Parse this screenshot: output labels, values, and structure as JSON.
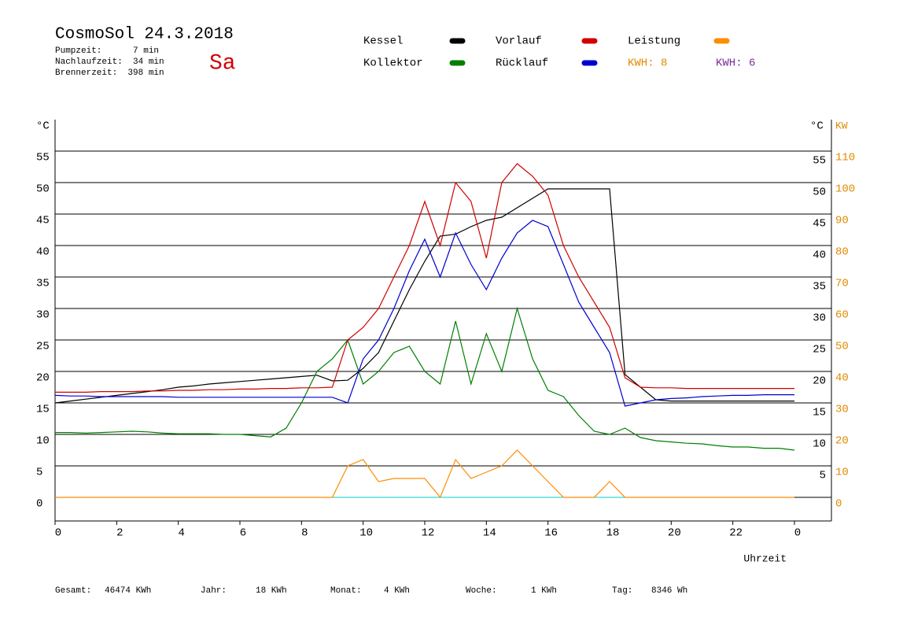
{
  "header": {
    "title": "CosmoSol 24.3.2018",
    "day": "Sa",
    "stats": [
      "Pumpzeit:      7 min",
      "Nachlaufzeit:  34 min",
      "Brennerzeit:  398 min"
    ]
  },
  "chart_data": {
    "type": "line",
    "y_unit": "°C",
    "y2_unit_c": "°C",
    "y2_unit": "KW",
    "x_label": "Uhrzeit",
    "kwh_labels": [
      {
        "text": "KWH: 8",
        "color": "#e08a00"
      },
      {
        "text": "KWH: 6",
        "color": "#7a2a9a"
      }
    ],
    "x": [
      0,
      0.5,
      1,
      1.5,
      2,
      2.5,
      3,
      3.5,
      4,
      4.5,
      5,
      5.5,
      6,
      6.5,
      7,
      7.5,
      8,
      8.5,
      9,
      9.5,
      10,
      10.5,
      11,
      11.5,
      12,
      12.5,
      13,
      13.5,
      14,
      14.5,
      15,
      15.5,
      16,
      16.5,
      17,
      17.5,
      18,
      18.5,
      19,
      19.5,
      20,
      20.5,
      21,
      21.5,
      22,
      22.5,
      23,
      23.5,
      24
    ],
    "xlim": [
      0,
      24
    ],
    "xticks": [
      0,
      2,
      4,
      6,
      8,
      10,
      12,
      14,
      16,
      18,
      20,
      22,
      {
        "value": 24,
        "label": "0"
      }
    ],
    "ylim": [
      -3.75,
      60
    ],
    "yticks": [
      0,
      5,
      10,
      15,
      20,
      25,
      30,
      35,
      40,
      45,
      50,
      55
    ],
    "y_right_ticks": [
      5,
      10,
      15,
      20,
      25,
      30,
      35,
      40,
      45,
      50,
      55
    ],
    "y2lim": [
      -7.5,
      120
    ],
    "y2ticks": [
      0,
      10,
      20,
      30,
      40,
      50,
      60,
      70,
      80,
      90,
      100,
      110
    ],
    "grid": true,
    "series": [
      {
        "name": "Kessel",
        "color": "#000000",
        "values": [
          15,
          15.3,
          15.6,
          15.9,
          16.2,
          16.5,
          16.8,
          17.1,
          17.5,
          17.7,
          18,
          18.2,
          18.4,
          18.6,
          18.8,
          19,
          19.2,
          19.4,
          18.5,
          18.6,
          20.5,
          23,
          28,
          33,
          37.5,
          41.5,
          41.8,
          43,
          44,
          44.5,
          46,
          47.5,
          49,
          49,
          49,
          49,
          49,
          19.5,
          17.5,
          15.5,
          15.3,
          15.3,
          15.3,
          15.3,
          15.3,
          15.3,
          15.3,
          15.3,
          15.3
        ]
      },
      {
        "name": "Kollektor",
        "color": "#007f00",
        "values": [
          10.3,
          10.3,
          10.2,
          10.3,
          10.4,
          10.5,
          10.4,
          10.2,
          10.1,
          10.1,
          10.1,
          10,
          10,
          9.8,
          9.6,
          11,
          15,
          20,
          22,
          25,
          18,
          20,
          23,
          24,
          20,
          18,
          28,
          18,
          26,
          20,
          30,
          22,
          17,
          16,
          13,
          10.5,
          10,
          11,
          9.5,
          9,
          8.8,
          8.6,
          8.5,
          8.2,
          8,
          8,
          7.8,
          7.8,
          7.5
        ]
      },
      {
        "name": "Vorlauf",
        "color": "#d00000",
        "values": [
          16.7,
          16.7,
          16.7,
          16.8,
          16.8,
          16.8,
          16.9,
          16.9,
          17,
          17,
          17.1,
          17.1,
          17.2,
          17.2,
          17.3,
          17.3,
          17.4,
          17.4,
          17.5,
          25,
          27,
          30,
          35,
          40,
          47,
          40,
          50,
          47,
          38,
          50,
          53,
          51,
          48,
          40,
          35,
          31,
          27,
          19,
          17.5,
          17.4,
          17.4,
          17.3,
          17.3,
          17.3,
          17.3,
          17.3,
          17.3,
          17.3,
          17.3
        ]
      },
      {
        "name": "Rücklauf",
        "color": "#0000d0",
        "values": [
          16.2,
          16.1,
          16.1,
          16,
          16,
          16,
          16,
          16,
          15.9,
          15.9,
          15.9,
          15.9,
          15.9,
          15.9,
          15.9,
          15.9,
          15.9,
          15.9,
          15.9,
          15,
          22,
          25,
          30,
          36,
          41,
          35,
          42,
          37,
          33,
          38,
          42,
          44,
          43,
          37,
          31,
          27,
          23,
          14.5,
          15,
          15.5,
          15.7,
          15.8,
          16,
          16.1,
          16.2,
          16.2,
          16.3,
          16.3,
          16.3
        ]
      },
      {
        "name": "Leistung",
        "color": "#ff8c00",
        "axis": "y2",
        "values": [
          0,
          0,
          0,
          0,
          0,
          0,
          0,
          0,
          0,
          0,
          0,
          0,
          0,
          0,
          0,
          0,
          0,
          0,
          0,
          10,
          12,
          5,
          6,
          6,
          6,
          0,
          12,
          6,
          8,
          10,
          15,
          10,
          5,
          0,
          0,
          0,
          5,
          0,
          0,
          0,
          0,
          0,
          0,
          0,
          0,
          0,
          0,
          0,
          0
        ]
      }
    ]
  },
  "footer": [
    {
      "label": "Gesamt:",
      "value": "46474 KWh"
    },
    {
      "label": "Jahr:",
      "value": "18 KWh"
    },
    {
      "label": "Monat:",
      "value": "4 KWh"
    },
    {
      "label": "Woche:",
      "value": "1 KWh"
    },
    {
      "label": "Tag:",
      "value": "8346 Wh"
    }
  ]
}
